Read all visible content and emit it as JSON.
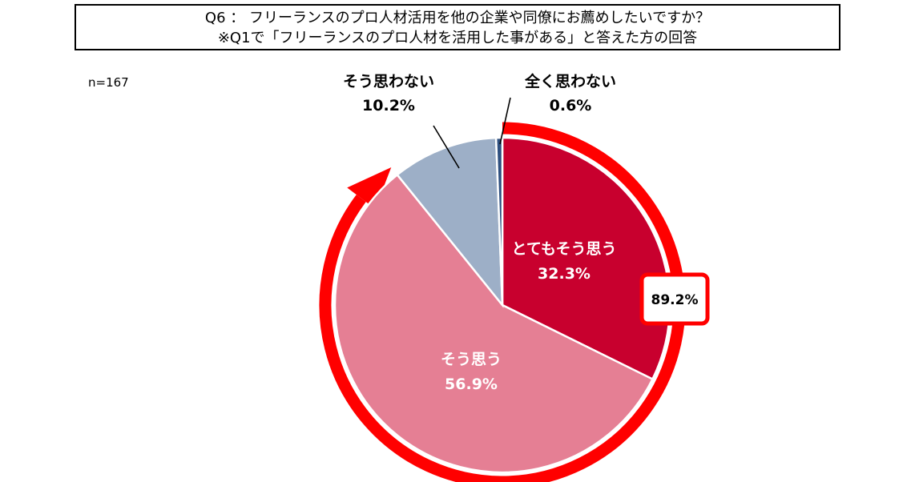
{
  "title": {
    "line1": "Q6 ： フリーランスのプロ人材活用を他の企業や同僚にお薦めしたいですか？",
    "line2": "※Q1で「フリーランスのプロ人材を活用した事がある」と答えた方の回答"
  },
  "sample_size": "n=167",
  "chart_data": {
    "type": "pie",
    "slices": [
      {
        "label": "とてもそう思う",
        "value": 32.3,
        "value_label": "32.3%",
        "color": "#C8002E"
      },
      {
        "label": "そう思う",
        "value": 56.9,
        "value_label": "56.9%",
        "color": "#E57F94"
      },
      {
        "label": "そう思わない",
        "value": 10.2,
        "value_label": "10.2%",
        "color": "#9DAFC7"
      },
      {
        "label": "全く思わない",
        "value": 0.6,
        "value_label": "0.6%",
        "color": "#2E4F7F"
      }
    ],
    "start_angle": "12 o'clock",
    "direction": "clockwise",
    "highlight": {
      "value_label": "89.2%",
      "covers": [
        "とてもそう思う",
        "そう思う"
      ],
      "color": "#FF0000"
    }
  }
}
